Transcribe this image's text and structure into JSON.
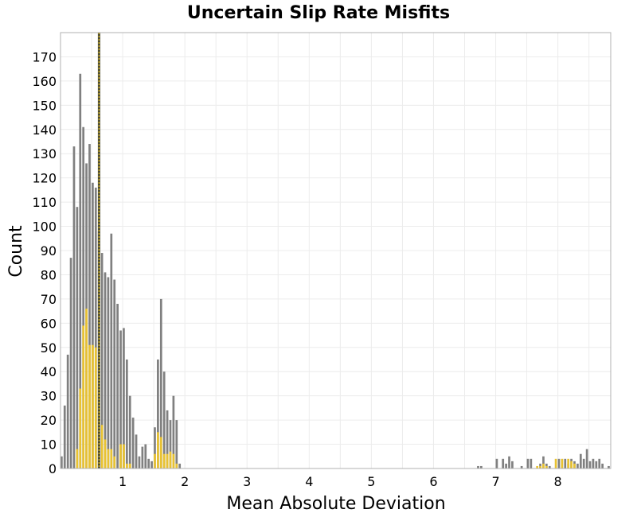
{
  "chart_data": {
    "type": "bar",
    "title": "Uncertain Slip Rate Misfits",
    "xlabel": "Mean Absolute Deviation",
    "ylabel": "Count",
    "xlim": [
      0.0,
      8.85
    ],
    "ylim": [
      0,
      180
    ],
    "x_ticks": [
      1,
      2,
      3,
      4,
      5,
      6,
      7,
      8
    ],
    "y_ticks": [
      0,
      10,
      20,
      30,
      40,
      50,
      60,
      70,
      80,
      90,
      100,
      110,
      120,
      130,
      140,
      150,
      160,
      170
    ],
    "grid": true,
    "bin_width": 0.05,
    "colors": {
      "all": "#808080",
      "highlight": "#e8c232",
      "reference_line": "#4d4d33",
      "reference_dots": "#d4b020"
    },
    "reference_line_x": 0.62,
    "series": [
      {
        "role": "all",
        "bins": [
          [
            0.0,
            5
          ],
          [
            0.05,
            26
          ],
          [
            0.1,
            47
          ],
          [
            0.15,
            87
          ],
          [
            0.2,
            133
          ],
          [
            0.25,
            108
          ],
          [
            0.3,
            163
          ],
          [
            0.35,
            141
          ],
          [
            0.4,
            126
          ],
          [
            0.45,
            134
          ],
          [
            0.5,
            118
          ],
          [
            0.55,
            116
          ],
          [
            0.6,
            98
          ],
          [
            0.65,
            89
          ],
          [
            0.7,
            81
          ],
          [
            0.75,
            79
          ],
          [
            0.8,
            97
          ],
          [
            0.85,
            78
          ],
          [
            0.9,
            68
          ],
          [
            0.95,
            57
          ],
          [
            1.0,
            58
          ],
          [
            1.05,
            45
          ],
          [
            1.1,
            30
          ],
          [
            1.15,
            21
          ],
          [
            1.2,
            14
          ],
          [
            1.25,
            5
          ],
          [
            1.3,
            9
          ],
          [
            1.35,
            10
          ],
          [
            1.4,
            4
          ],
          [
            1.45,
            3
          ],
          [
            1.5,
            17
          ],
          [
            1.55,
            45
          ],
          [
            1.6,
            70
          ],
          [
            1.65,
            40
          ],
          [
            1.7,
            24
          ],
          [
            1.75,
            20
          ],
          [
            1.8,
            30
          ],
          [
            1.85,
            20
          ],
          [
            1.9,
            2
          ],
          [
            6.7,
            1
          ],
          [
            6.75,
            1
          ],
          [
            7.0,
            4
          ],
          [
            7.1,
            4
          ],
          [
            7.15,
            2
          ],
          [
            7.2,
            5
          ],
          [
            7.25,
            3
          ],
          [
            7.4,
            1
          ],
          [
            7.5,
            4
          ],
          [
            7.55,
            4
          ],
          [
            7.7,
            2
          ],
          [
            7.75,
            5
          ],
          [
            7.8,
            2
          ],
          [
            7.85,
            1
          ],
          [
            8.0,
            4
          ],
          [
            8.1,
            4
          ],
          [
            8.15,
            2
          ],
          [
            8.2,
            4
          ],
          [
            8.25,
            3
          ],
          [
            8.3,
            2
          ],
          [
            8.35,
            6
          ],
          [
            8.4,
            4
          ],
          [
            8.45,
            8
          ],
          [
            8.5,
            3
          ],
          [
            8.55,
            4
          ],
          [
            8.6,
            3
          ],
          [
            8.65,
            4
          ],
          [
            8.7,
            2
          ],
          [
            8.8,
            1
          ]
        ]
      },
      {
        "role": "highlight",
        "bins": [
          [
            0.25,
            8
          ],
          [
            0.3,
            33
          ],
          [
            0.35,
            59
          ],
          [
            0.4,
            66
          ],
          [
            0.45,
            51
          ],
          [
            0.5,
            51
          ],
          [
            0.55,
            50
          ],
          [
            0.6,
            34
          ],
          [
            0.65,
            18
          ],
          [
            0.7,
            12
          ],
          [
            0.75,
            8
          ],
          [
            0.8,
            8
          ],
          [
            0.85,
            5
          ],
          [
            0.95,
            10
          ],
          [
            1.0,
            10
          ],
          [
            1.05,
            2
          ],
          [
            1.1,
            2
          ],
          [
            1.5,
            6
          ],
          [
            1.55,
            15
          ],
          [
            1.6,
            13
          ],
          [
            1.65,
            6
          ],
          [
            1.7,
            6
          ],
          [
            1.75,
            7
          ],
          [
            1.8,
            6
          ],
          [
            1.85,
            2
          ],
          [
            7.65,
            1
          ],
          [
            7.7,
            1
          ],
          [
            7.75,
            2
          ],
          [
            7.8,
            1
          ],
          [
            7.95,
            4
          ],
          [
            8.05,
            4
          ],
          [
            8.15,
            4
          ],
          [
            8.2,
            3
          ],
          [
            8.25,
            2
          ]
        ]
      }
    ]
  }
}
